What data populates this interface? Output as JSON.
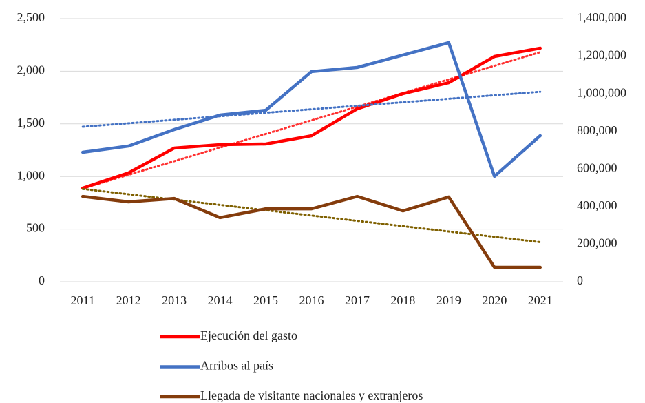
{
  "chart_data": {
    "type": "line",
    "categories": [
      "2011",
      "2012",
      "2013",
      "2014",
      "2015",
      "2016",
      "2017",
      "2018",
      "2019",
      "2020",
      "2021"
    ],
    "series": [
      {
        "name": "Ejecución del gasto",
        "color": "#ff0000",
        "trend_color": "#ff3030",
        "axis": "y",
        "values": [
          890,
          1034,
          1270,
          1302,
          1309,
          1387,
          1643,
          1787,
          1891,
          2140,
          2219
        ]
      },
      {
        "name": "Arribos al país",
        "color": "#4472c4",
        "trend_color": "#4472c4",
        "axis": "y2",
        "values": [
          689000,
          722000,
          810000,
          887000,
          912000,
          1118000,
          1140000,
          1206000,
          1272000,
          561000,
          777000
        ]
      },
      {
        "name": "Llegada de visitante nacionales y extranjeros",
        "color": "#843c0c",
        "trend_color": "#7f6000",
        "axis": "y2",
        "values": [
          454000,
          425000,
          443000,
          341000,
          388000,
          388000,
          454000,
          377000,
          451000,
          77000,
          77000
        ]
      }
    ],
    "trendline": true,
    "ylim": [
      0,
      2500
    ],
    "yticks": [
      0,
      500,
      {
        "value": 1000,
        "label": "1,000"
      },
      {
        "value": 1500,
        "label": "1,500"
      },
      {
        "value": 2000,
        "label": "2,000"
      },
      {
        "value": 2500,
        "label": "2,500"
      }
    ],
    "y2lim": [
      0,
      1400000
    ],
    "y2ticks": [
      0,
      {
        "value": 200000,
        "label": "200,000"
      },
      {
        "value": 400000,
        "label": "400,000"
      },
      {
        "value": 600000,
        "label": "600,000"
      },
      {
        "value": 800000,
        "label": "800,000"
      },
      {
        "value": 1000000,
        "label": "1,000,000"
      },
      {
        "value": 1200000,
        "label": "1,200,000"
      },
      {
        "value": 1400000,
        "label": "1,400,000"
      }
    ],
    "grid": true,
    "legend": "bottom"
  }
}
